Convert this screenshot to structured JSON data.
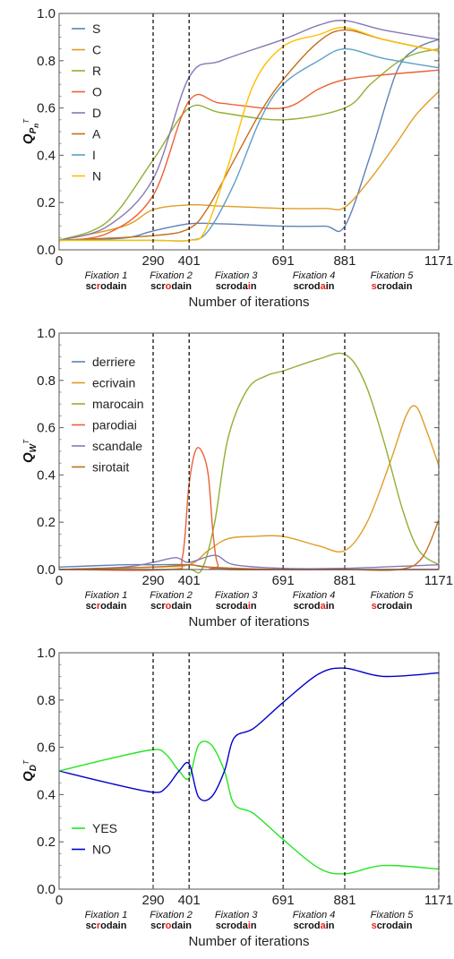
{
  "fixation_labels": {
    "fixations": [
      "Fixation 1",
      "Fixation 2",
      "Fixation 3",
      "Fixation 4",
      "Fixation 5"
    ],
    "words": [
      {
        "pre": "sc",
        "hl": "r",
        "post": "odain"
      },
      {
        "pre": "scr",
        "hl": "o",
        "post": "dain"
      },
      {
        "pre": "scroda",
        "hl": "i",
        "post": "n"
      },
      {
        "pre": "scrod",
        "hl": "a",
        "post": "in"
      },
      {
        "pre": "",
        "hl": "s",
        "post": "crodain"
      }
    ],
    "highlight_color": "#e8231c"
  },
  "chart_data": [
    {
      "type": "line",
      "xlabel": "Number of iterations",
      "ylabel": {
        "main": "Q",
        "sub": "P",
        "subsub": "n",
        "sup": "T"
      },
      "xlim": [
        0,
        1171
      ],
      "ylim": [
        0,
        1
      ],
      "xticks": [
        0,
        290,
        401,
        691,
        881,
        1171
      ],
      "yticks": [
        0.0,
        0.2,
        0.4,
        0.6,
        0.8,
        1.0
      ],
      "ytick_labels": [
        "0.0",
        "0.2",
        "0.4",
        "0.6",
        "0.8",
        "1.0"
      ],
      "vlines": [
        290,
        401,
        691,
        881,
        1171
      ],
      "legend": "top-left",
      "series": [
        {
          "name": "S",
          "color": "#5e81b5",
          "points": [
            [
              0,
              0.04
            ],
            [
              200,
              0.05
            ],
            [
              290,
              0.08
            ],
            [
              401,
              0.11
            ],
            [
              500,
              0.11
            ],
            [
              691,
              0.1
            ],
            [
              820,
              0.1
            ],
            [
              881,
              0.1
            ],
            [
              960,
              0.4
            ],
            [
              1040,
              0.75
            ],
            [
              1100,
              0.85
            ],
            [
              1171,
              0.89
            ]
          ]
        },
        {
          "name": "C",
          "color": "#e19c24",
          "points": [
            [
              0,
              0.04
            ],
            [
              200,
              0.1
            ],
            [
              290,
              0.17
            ],
            [
              401,
              0.19
            ],
            [
              500,
              0.185
            ],
            [
              691,
              0.175
            ],
            [
              820,
              0.175
            ],
            [
              881,
              0.18
            ],
            [
              960,
              0.3
            ],
            [
              1040,
              0.45
            ],
            [
              1100,
              0.57
            ],
            [
              1171,
              0.67
            ]
          ]
        },
        {
          "name": "R",
          "color": "#8fb032",
          "points": [
            [
              0,
              0.04
            ],
            [
              150,
              0.12
            ],
            [
              290,
              0.38
            ],
            [
              401,
              0.6
            ],
            [
              500,
              0.58
            ],
            [
              691,
              0.55
            ],
            [
              881,
              0.6
            ],
            [
              960,
              0.7
            ],
            [
              1040,
              0.79
            ],
            [
              1100,
              0.83
            ],
            [
              1171,
              0.85
            ]
          ]
        },
        {
          "name": "O",
          "color": "#eb6235",
          "points": [
            [
              0,
              0.04
            ],
            [
              150,
              0.07
            ],
            [
              290,
              0.23
            ],
            [
              401,
              0.63
            ],
            [
              500,
              0.62
            ],
            [
              691,
              0.6
            ],
            [
              800,
              0.68
            ],
            [
              881,
              0.72
            ],
            [
              1000,
              0.74
            ],
            [
              1171,
              0.76
            ]
          ]
        },
        {
          "name": "D",
          "color": "#8778b3",
          "points": [
            [
              0,
              0.04
            ],
            [
              150,
              0.1
            ],
            [
              290,
              0.3
            ],
            [
              401,
              0.73
            ],
            [
              500,
              0.8
            ],
            [
              691,
              0.89
            ],
            [
              800,
              0.95
            ],
            [
              881,
              0.97
            ],
            [
              1000,
              0.93
            ],
            [
              1171,
              0.89
            ]
          ]
        },
        {
          "name": "A",
          "color": "#c56e1a",
          "points": [
            [
              0,
              0.04
            ],
            [
              290,
              0.06
            ],
            [
              401,
              0.09
            ],
            [
              460,
              0.18
            ],
            [
              540,
              0.38
            ],
            [
              620,
              0.58
            ],
            [
              691,
              0.72
            ],
            [
              800,
              0.88
            ],
            [
              881,
              0.93
            ],
            [
              1000,
              0.89
            ],
            [
              1171,
              0.84
            ]
          ]
        },
        {
          "name": "I",
          "color": "#5d9ec7",
          "points": [
            [
              0,
              0.04
            ],
            [
              290,
              0.04
            ],
            [
              401,
              0.04
            ],
            [
              460,
              0.08
            ],
            [
              540,
              0.28
            ],
            [
              620,
              0.55
            ],
            [
              691,
              0.7
            ],
            [
              800,
              0.8
            ],
            [
              881,
              0.85
            ],
            [
              1000,
              0.81
            ],
            [
              1171,
              0.77
            ]
          ]
        },
        {
          "name": "N",
          "color": "#ffbf00",
          "points": [
            [
              0,
              0.04
            ],
            [
              290,
              0.04
            ],
            [
              401,
              0.04
            ],
            [
              450,
              0.08
            ],
            [
              520,
              0.35
            ],
            [
              600,
              0.7
            ],
            [
              691,
              0.86
            ],
            [
              800,
              0.91
            ],
            [
              881,
              0.94
            ],
            [
              1000,
              0.89
            ],
            [
              1171,
              0.84
            ]
          ]
        }
      ]
    },
    {
      "type": "line",
      "xlabel": "Number of iterations",
      "ylabel": {
        "main": "Q",
        "sub": "W",
        "subsub": "",
        "sup": "T"
      },
      "xlim": [
        0,
        1171
      ],
      "ylim": [
        0,
        1
      ],
      "xticks": [
        0,
        290,
        401,
        691,
        881,
        1171
      ],
      "yticks": [
        0.0,
        0.2,
        0.4,
        0.6,
        0.8,
        1.0
      ],
      "ytick_labels": [
        "0.0",
        "0.2",
        "0.4",
        "0.6",
        "0.8",
        "1.0"
      ],
      "vlines": [
        290,
        401,
        691,
        881,
        1171
      ],
      "legend": "top-left",
      "series": [
        {
          "name": "derriere",
          "color": "#5e81b5",
          "points": [
            [
              0,
              0.01
            ],
            [
              200,
              0.02
            ],
            [
              290,
              0.02
            ],
            [
              401,
              0.02
            ],
            [
              500,
              0.005
            ],
            [
              691,
              0.0
            ],
            [
              881,
              0.0
            ],
            [
              1171,
              0.0
            ]
          ]
        },
        {
          "name": "ecrivain",
          "color": "#e19c24",
          "points": [
            [
              0,
              0.0
            ],
            [
              290,
              0.01
            ],
            [
              401,
              0.02
            ],
            [
              460,
              0.08
            ],
            [
              520,
              0.13
            ],
            [
              600,
              0.14
            ],
            [
              691,
              0.14
            ],
            [
              800,
              0.1
            ],
            [
              881,
              0.08
            ],
            [
              950,
              0.2
            ],
            [
              1020,
              0.45
            ],
            [
              1070,
              0.65
            ],
            [
              1100,
              0.69
            ],
            [
              1130,
              0.6
            ],
            [
              1171,
              0.44
            ]
          ]
        },
        {
          "name": "marocain",
          "color": "#8fb032",
          "points": [
            [
              0,
              0.0
            ],
            [
              290,
              0.0
            ],
            [
              401,
              0.0
            ],
            [
              440,
              0.0
            ],
            [
              480,
              0.2
            ],
            [
              520,
              0.55
            ],
            [
              580,
              0.76
            ],
            [
              640,
              0.82
            ],
            [
              691,
              0.84
            ],
            [
              800,
              0.89
            ],
            [
              881,
              0.91
            ],
            [
              940,
              0.8
            ],
            [
              1000,
              0.55
            ],
            [
              1060,
              0.25
            ],
            [
              1110,
              0.08
            ],
            [
              1171,
              0.02
            ]
          ]
        },
        {
          "name": "parodiai",
          "color": "#eb6235",
          "points": [
            [
              0,
              0.0
            ],
            [
              340,
              0.0
            ],
            [
              380,
              0.05
            ],
            [
              400,
              0.35
            ],
            [
              420,
              0.5
            ],
            [
              440,
              0.5
            ],
            [
              460,
              0.4
            ],
            [
              475,
              0.15
            ],
            [
              490,
              0.02
            ],
            [
              520,
              0.0
            ],
            [
              1171,
              0.0
            ]
          ]
        },
        {
          "name": "scandale",
          "color": "#8778b3",
          "points": [
            [
              0,
              0.0
            ],
            [
              200,
              0.01
            ],
            [
              290,
              0.03
            ],
            [
              360,
              0.05
            ],
            [
              401,
              0.03
            ],
            [
              480,
              0.06
            ],
            [
              540,
              0.02
            ],
            [
              691,
              0.005
            ],
            [
              881,
              0.005
            ],
            [
              1171,
              0.02
            ]
          ]
        },
        {
          "name": "sirotait",
          "color": "#c56e1a",
          "points": [
            [
              0,
              0.0
            ],
            [
              290,
              0.01
            ],
            [
              401,
              0.02
            ],
            [
              460,
              0.01
            ],
            [
              691,
              0.0
            ],
            [
              881,
              0.0
            ],
            [
              1050,
              0.0
            ],
            [
              1120,
              0.05
            ],
            [
              1171,
              0.21
            ]
          ]
        }
      ]
    },
    {
      "type": "line",
      "xlabel": "Number of iterations",
      "ylabel": {
        "main": "Q",
        "sub": "D",
        "subsub": "",
        "sup": "T"
      },
      "xlim": [
        0,
        1171
      ],
      "ylim": [
        0,
        1
      ],
      "xticks": [
        0,
        290,
        401,
        691,
        881,
        1171
      ],
      "yticks": [
        0.0,
        0.2,
        0.4,
        0.6,
        0.8,
        1.0
      ],
      "ytick_labels": [
        "0.0",
        "0.2",
        "0.4",
        "0.6",
        "0.8",
        "1.0"
      ],
      "vlines": [
        290,
        401,
        691,
        881,
        1171
      ],
      "legend": "bottom-left",
      "series": [
        {
          "name": "YES",
          "color": "#23e622",
          "points": [
            [
              0,
              0.5
            ],
            [
              150,
              0.55
            ],
            [
              290,
              0.59
            ],
            [
              330,
              0.57
            ],
            [
              370,
              0.5
            ],
            [
              401,
              0.47
            ],
            [
              430,
              0.61
            ],
            [
              470,
              0.61
            ],
            [
              510,
              0.5
            ],
            [
              540,
              0.36
            ],
            [
              600,
              0.32
            ],
            [
              691,
              0.21
            ],
            [
              800,
              0.09
            ],
            [
              881,
              0.065
            ],
            [
              1000,
              0.1
            ],
            [
              1171,
              0.085
            ]
          ]
        },
        {
          "name": "NO",
          "color": "#0000cc",
          "points": [
            [
              0,
              0.5
            ],
            [
              150,
              0.45
            ],
            [
              290,
              0.41
            ],
            [
              330,
              0.43
            ],
            [
              370,
              0.5
            ],
            [
              401,
              0.53
            ],
            [
              430,
              0.39
            ],
            [
              470,
              0.39
            ],
            [
              510,
              0.5
            ],
            [
              540,
              0.64
            ],
            [
              600,
              0.68
            ],
            [
              691,
              0.79
            ],
            [
              800,
              0.91
            ],
            [
              881,
              0.935
            ],
            [
              1000,
              0.9
            ],
            [
              1171,
              0.915
            ]
          ]
        }
      ]
    }
  ]
}
